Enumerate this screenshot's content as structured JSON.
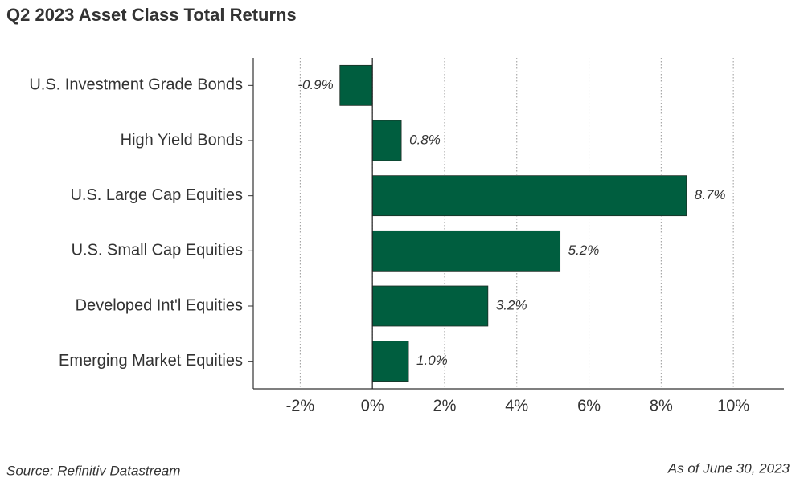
{
  "chart_data": {
    "type": "hbar",
    "title": "Q2 2023 Asset Class Total Returns",
    "categories": [
      "U.S. Investment Grade Bonds",
      "High Yield Bonds",
      "U.S. Large Cap Equities",
      "U.S. Small Cap Equities",
      "Developed Int'l Equities",
      "Emerging Market Equities"
    ],
    "values": [
      -0.9,
      0.8,
      8.7,
      5.2,
      3.2,
      1.0
    ],
    "value_labels": [
      "-0.9%",
      "0.8%",
      "8.7%",
      "5.2%",
      "3.2%",
      "1.0%"
    ],
    "color": "#005e3f",
    "xlim": [
      -3.3,
      11.4
    ],
    "xticks": [
      {
        "value": -2,
        "label": "-2%"
      },
      {
        "value": 0,
        "label": "0%"
      },
      {
        "value": 2,
        "label": "2%"
      },
      {
        "value": 4,
        "label": "4%"
      },
      {
        "value": 6,
        "label": "6%"
      },
      {
        "value": 8,
        "label": "8%"
      },
      {
        "value": 10,
        "label": "10%"
      }
    ],
    "grid": true,
    "source": "Source: Refinitiv Datastream",
    "note": "As of June 30, 2023"
  }
}
